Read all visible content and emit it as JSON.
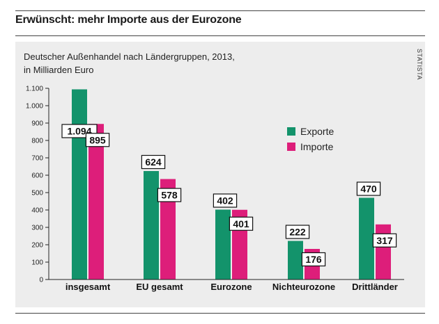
{
  "headline": "Erwünscht: mehr Importe aus der Eurozone",
  "source_label": "STATISTA",
  "colors": {
    "exporte": "#13936b",
    "importe": "#dd1e7a",
    "panel": "#ededed"
  },
  "chart_data": {
    "type": "bar",
    "subtitle_lines": [
      "Deutscher Außenhandel nach Ländergruppen, 2013,",
      "in Milliarden Euro"
    ],
    "categories": [
      "insgesamt",
      "EU gesamt",
      "Eurozone",
      "Nichteurozone",
      "Drittländer"
    ],
    "series": [
      {
        "name": "Exporte",
        "values": [
          1094,
          624,
          402,
          222,
          470
        ],
        "labels": [
          "1.094",
          "624",
          "402",
          "222",
          "470"
        ]
      },
      {
        "name": "Importe",
        "values": [
          895,
          578,
          401,
          176,
          317
        ],
        "labels": [
          "895",
          "578",
          "401",
          "176",
          "317"
        ]
      }
    ],
    "ylim": [
      0,
      1100
    ],
    "yticks": [
      {
        "value": 0,
        "label": "0"
      },
      {
        "value": 100,
        "label": "100"
      },
      {
        "value": 200,
        "label": "200"
      },
      {
        "value": 300,
        "label": "300"
      },
      {
        "value": 400,
        "label": "400"
      },
      {
        "value": 500,
        "label": "500"
      },
      {
        "value": 600,
        "label": "600"
      },
      {
        "value": 700,
        "label": "700"
      },
      {
        "value": 800,
        "label": "800"
      },
      {
        "value": 900,
        "label": "900"
      },
      {
        "value": 1000,
        "label": "1.000"
      },
      {
        "value": 1100,
        "label": "1.100"
      }
    ],
    "legend_position": "right",
    "grid": false
  }
}
